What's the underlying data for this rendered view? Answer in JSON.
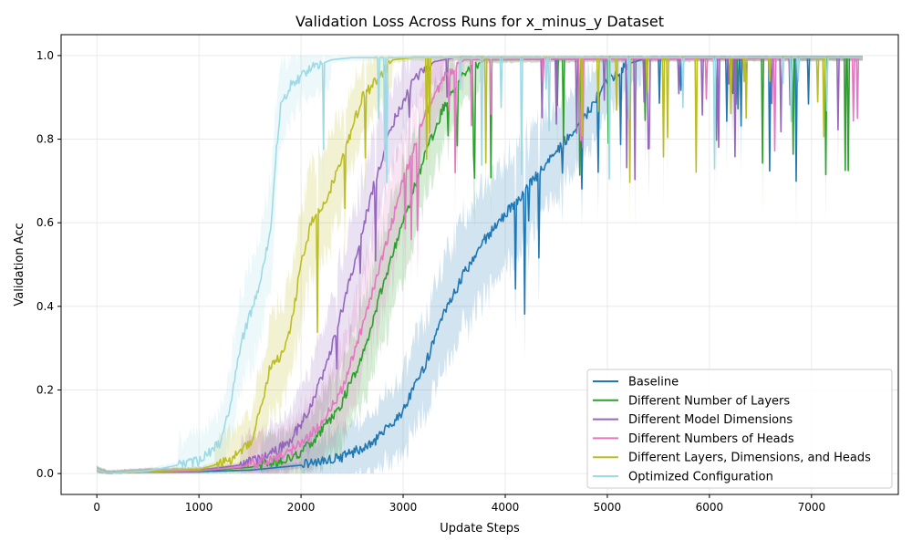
{
  "chart_data": {
    "type": "line",
    "title": "Validation Loss Across Runs for x_minus_y Dataset",
    "xlabel": "Update Steps",
    "ylabel": "Validation Acc",
    "xlim": [
      -350,
      7850
    ],
    "ylim": [
      -0.05,
      1.05
    ],
    "xticks": [
      0,
      1000,
      2000,
      3000,
      4000,
      5000,
      6000,
      7000
    ],
    "yticks": [
      0.0,
      0.2,
      0.4,
      0.6,
      0.8,
      1.0
    ],
    "xtick_labels": [
      "0",
      "1000",
      "2000",
      "3000",
      "4000",
      "5000",
      "6000",
      "7000"
    ],
    "ytick_labels": [
      "0.0",
      "0.2",
      "0.4",
      "0.6",
      "0.8",
      "1.0"
    ],
    "grid": true,
    "legend_position": "bottom-right",
    "shaded_band": "standard error",
    "x_end": 7500,
    "series": [
      {
        "name": "Baseline",
        "color": "#1f77b4",
        "x": [
          0,
          100,
          500,
          1000,
          1500,
          2000,
          2400,
          2700,
          3000,
          3200,
          3400,
          3600,
          3800,
          4000,
          4200,
          4500,
          4800,
          5000,
          5200,
          5400,
          7500
        ],
        "y": [
          0.01,
          0.0,
          0.005,
          0.005,
          0.008,
          0.02,
          0.04,
          0.07,
          0.15,
          0.25,
          0.38,
          0.48,
          0.56,
          0.62,
          0.68,
          0.77,
          0.86,
          0.94,
          0.98,
          0.995,
          0.995
        ]
      },
      {
        "name": "Different Number of Layers",
        "color": "#2ca02c",
        "x": [
          0,
          100,
          500,
          1000,
          1500,
          1800,
          2000,
          2200,
          2400,
          2600,
          2800,
          3000,
          3200,
          3400,
          3600,
          3800,
          7500
        ],
        "y": [
          0.01,
          0.0,
          0.005,
          0.006,
          0.015,
          0.03,
          0.05,
          0.1,
          0.17,
          0.28,
          0.45,
          0.6,
          0.75,
          0.88,
          0.96,
          0.99,
          0.995
        ]
      },
      {
        "name": "Different Model Dimensions",
        "color": "#9467bd",
        "x": [
          0,
          100,
          500,
          1000,
          1400,
          1700,
          1900,
          2100,
          2300,
          2500,
          2700,
          2900,
          3100,
          3300,
          3500,
          7500
        ],
        "y": [
          0.01,
          0.0,
          0.005,
          0.008,
          0.02,
          0.045,
          0.08,
          0.16,
          0.3,
          0.48,
          0.68,
          0.84,
          0.94,
          0.985,
          0.995,
          0.995
        ]
      },
      {
        "name": "Different Numbers of Heads",
        "color": "#e377c2",
        "x": [
          0,
          100,
          500,
          1000,
          1400,
          1800,
          2000,
          2200,
          2400,
          2600,
          2800,
          3000,
          3200,
          3400,
          3600,
          7500
        ],
        "y": [
          0.01,
          0.0,
          0.005,
          0.007,
          0.015,
          0.04,
          0.07,
          0.12,
          0.2,
          0.35,
          0.52,
          0.7,
          0.85,
          0.95,
          0.99,
          0.995
        ]
      },
      {
        "name": "Different Layers, Dimensions, and Heads",
        "color": "#bcbd22",
        "x": [
          0,
          100,
          500,
          1000,
          1300,
          1500,
          1600,
          1700,
          1800,
          1900,
          2000,
          2100,
          2200,
          2400,
          2600,
          2700,
          2900,
          3100,
          7500
        ],
        "y": [
          0.01,
          0.0,
          0.005,
          0.01,
          0.03,
          0.07,
          0.15,
          0.26,
          0.28,
          0.35,
          0.5,
          0.6,
          0.63,
          0.75,
          0.9,
          0.93,
          0.99,
          0.995,
          0.995
        ]
      },
      {
        "name": "Optimized Configuration",
        "color": "#9edae5",
        "x": [
          0,
          100,
          500,
          1000,
          1200,
          1300,
          1400,
          1500,
          1600,
          1700,
          1750,
          1800,
          1900,
          2000,
          2100,
          2300,
          2500,
          7500
        ],
        "y": [
          0.01,
          0.0,
          0.006,
          0.03,
          0.07,
          0.15,
          0.3,
          0.38,
          0.45,
          0.58,
          0.75,
          0.88,
          0.93,
          0.95,
          0.97,
          0.99,
          0.995,
          0.995
        ]
      }
    ]
  }
}
